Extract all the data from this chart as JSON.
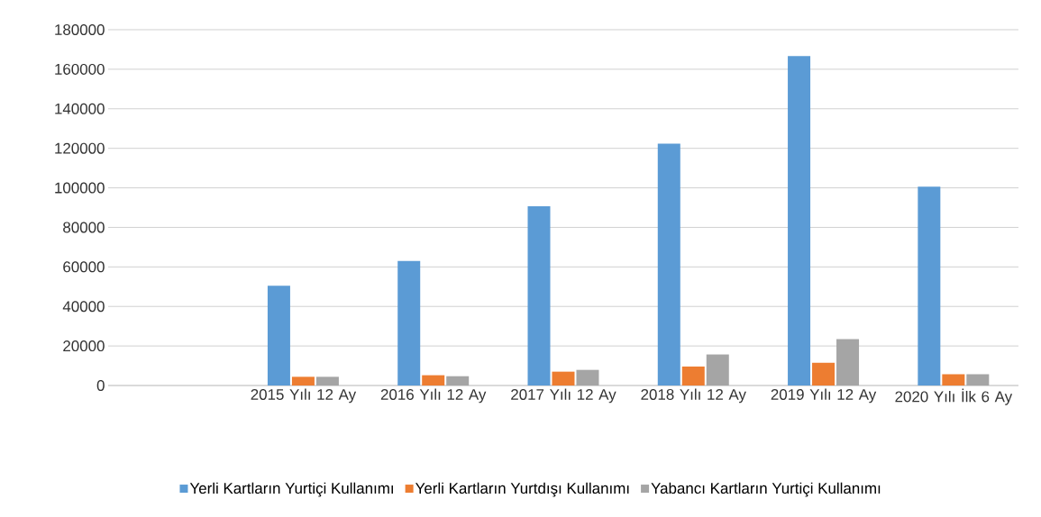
{
  "chart_data": {
    "type": "bar",
    "categories": [
      null,
      "2015 Yılı 12 Ay",
      "2016 Yılı 12 Ay",
      "2017 Yılı 12 Ay",
      "2018 Yılı 12 Ay",
      "2019 Yılı 12 Ay",
      "2020 Yılı İlk 6 Ay"
    ],
    "series": [
      {
        "name": "Yerli Kartların Yurtiçi Kullanımı",
        "color": "#5b9bd5",
        "values": [
          null,
          50500,
          63000,
          90700,
          122400,
          166700,
          100600
        ]
      },
      {
        "name": "Yerli Kartların Yurtdışı Kullanımı",
        "color": "#ed7d31",
        "values": [
          null,
          4400,
          5200,
          7000,
          9600,
          11500,
          5700
        ]
      },
      {
        "name": "Yabancı Kartların Yurtiçi Kullanımı",
        "color": "#a5a5a5",
        "values": [
          null,
          4400,
          4700,
          7900,
          15700,
          23500,
          5700
        ]
      }
    ],
    "ylim": [
      0,
      180000
    ],
    "yticks": [
      0,
      20000,
      40000,
      60000,
      80000,
      100000,
      120000,
      140000,
      160000,
      180000
    ],
    "grid": "y",
    "legend": "bottom"
  }
}
